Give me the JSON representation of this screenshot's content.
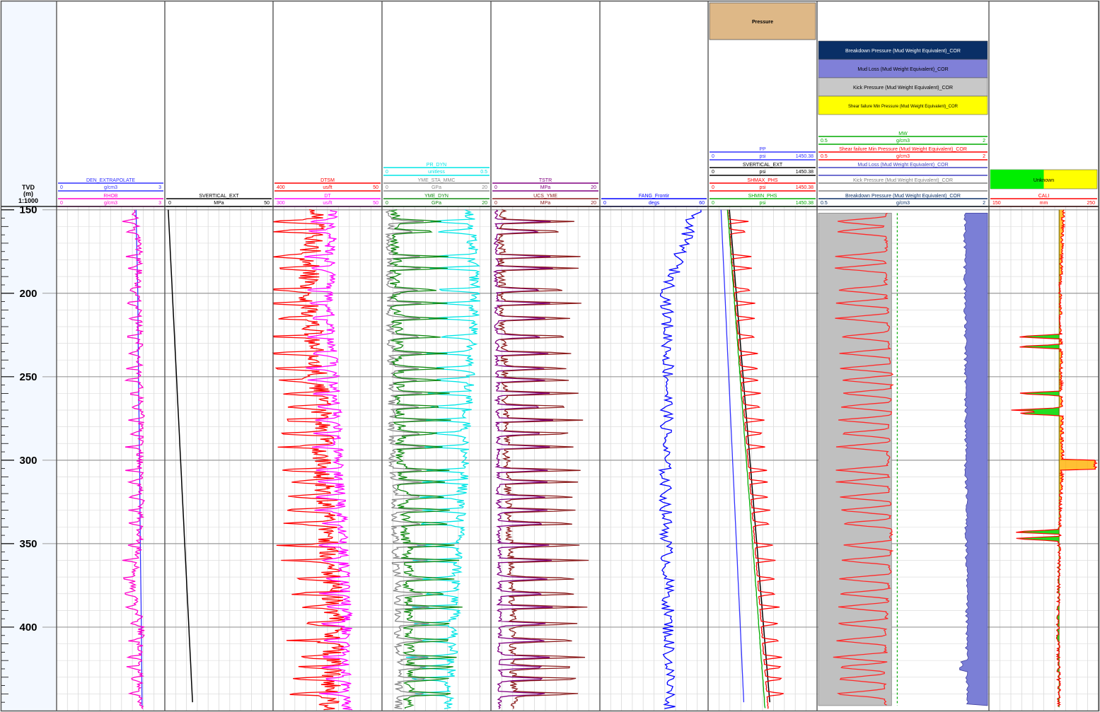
{
  "depth_track": {
    "header_line1": "TVD",
    "header_line2": "(m)",
    "header_line3": "1:1000",
    "ticks": [
      "150",
      "200",
      "250",
      "300",
      "350",
      "400"
    ]
  },
  "tracks": [
    {
      "curves": [
        {
          "name": "DEN_EXTRAPOLATE",
          "unit": "g/cm3",
          "min": "0",
          "max": "3",
          "color": "#3333ff"
        },
        {
          "name": "RHOB",
          "unit": "g/cm3",
          "min": "0",
          "max": "3",
          "color": "#ff00cc"
        }
      ]
    },
    {
      "curves": [
        {
          "name": "SVERTICAL_EXT",
          "unit": "MPa",
          "min": "0",
          "max": "50",
          "color": "#000000"
        }
      ]
    },
    {
      "curves": [
        {
          "name": "DTSM",
          "unit": "us/ft",
          "min": "400",
          "max": "50",
          "color": "#ff0000"
        },
        {
          "name": "DT",
          "unit": "us/ft",
          "min": "300",
          "max": "50",
          "color": "#ff00ff"
        }
      ]
    },
    {
      "curves": [
        {
          "name": "PR_DYN",
          "unit": "unitless",
          "min": "0",
          "max": "0.5",
          "color": "#00e5e5"
        },
        {
          "name": "YME_STA_MMC",
          "unit": "GPa",
          "min": "0",
          "max": "20",
          "color": "#888888"
        },
        {
          "name": "YME_DYN",
          "unit": "GPa",
          "min": "0",
          "max": "20",
          "color": "#118811"
        }
      ]
    },
    {
      "curves": [
        {
          "name": "TSTR",
          "unit": "MPa",
          "min": "0",
          "max": "20",
          "color": "#800080"
        },
        {
          "name": "UCS_YME",
          "unit": "MPa",
          "min": "0",
          "max": "20",
          "color": "#8b1a1a"
        }
      ]
    },
    {
      "curves": [
        {
          "name": "FANG_Frontir",
          "unit": "degs",
          "min": "0",
          "max": "60",
          "color": "#0000ff"
        }
      ]
    },
    {
      "top_label": "Pressure",
      "top_color": "#deb887",
      "curves": [
        {
          "name": "PP",
          "unit": "psi",
          "min": "0",
          "max": "1450.38",
          "color": "#3333ff"
        },
        {
          "name": "SVERTICAL_EXT",
          "unit": "psi",
          "min": "0",
          "max": "1450.38",
          "color": "#000000"
        },
        {
          "name": "SHMAX_PHS",
          "unit": "psi",
          "min": "0",
          "max": "1450.38",
          "color": "#ff0000"
        },
        {
          "name": "SHMIN_PHS",
          "unit": "psi",
          "min": "0",
          "max": "1450.38",
          "color": "#00aa00"
        }
      ]
    },
    {
      "legend": [
        {
          "label": "Breakdown Pressure (Mud Weight Equivalent)_COR",
          "color": "#0a2f66",
          "text_color": "#ffffff"
        },
        {
          "label": "Mud Loss (Mud Weight Equivalent)_COR",
          "color": "#8080d8",
          "text_color": "#000000"
        },
        {
          "label": "Kick Pressure (Mud Weight Equivalent)_COR",
          "color": "#c8c8c8",
          "text_color": "#000000"
        },
        {
          "label": "Shear failure Min Pressure (Mud Weight Equivalent)_COR",
          "color": "#ffff00",
          "text_color": "#000000"
        }
      ],
      "curves": [
        {
          "name": "MW",
          "unit": "g/cm3",
          "min": "0.5",
          "max": "2",
          "color": "#00aa00"
        },
        {
          "name": "Shear failure Min Pressure (Mud Weight Equivalent)_COR",
          "unit": "g/cm3",
          "min": "0.5",
          "max": "2",
          "color": "#ff0000"
        },
        {
          "name": "Mud Loss (Mud Weight Equivalent)_COR",
          "unit": "",
          "min": "",
          "max": "",
          "color": "#4040c0"
        },
        {
          "name": "Kick Pressure (Mud Weight Equivalent)_COR",
          "unit": "",
          "min": "",
          "max": "",
          "color": "#808080"
        },
        {
          "name": "Breakdown Pressure (Mud Weight Equivalent)_COR",
          "unit": "g/cm3",
          "min": "0.5",
          "max": "2",
          "color": "#0a2f66"
        }
      ]
    },
    {
      "legend": [
        {
          "label": "Unknown",
          "color": "#00ee00",
          "text_color": "#000000"
        }
      ],
      "curves": [
        {
          "name": "CALI",
          "unit": "mm",
          "min": "150",
          "max": "250",
          "color": "#ff0000"
        }
      ]
    }
  ],
  "chart_data": {
    "type": "line",
    "depth_range": [
      148,
      450
    ],
    "y_axis": "TVD (m)",
    "scale": "1:1000",
    "grid": true,
    "depth_ticks": [
      150,
      200,
      250,
      300,
      350,
      400
    ],
    "series": [
      {
        "name": "DEN_EXTRAPOLATE",
        "track": 1,
        "range": [
          0,
          3
        ],
        "x": [
          148,
          200,
          250,
          300,
          350,
          400,
          450
        ],
        "values": [
          2.2,
          2.25,
          2.27,
          2.3,
          2.32,
          2.35,
          2.37
        ]
      },
      {
        "name": "RHOB",
        "track": 1,
        "range": [
          0,
          3
        ],
        "x": [
          150,
          175,
          200,
          225,
          250,
          275,
          300,
          325,
          350,
          375,
          400,
          425,
          450
        ],
        "values": [
          2.15,
          2.3,
          2.25,
          2.3,
          2.3,
          2.35,
          2.3,
          2.35,
          2.3,
          2.1,
          2.35,
          2.3,
          2.35
        ]
      },
      {
        "name": "SVERTICAL_EXT",
        "track": 2,
        "range": [
          0,
          50
        ],
        "x": [
          148,
          450
        ],
        "values": [
          1.5,
          13.0
        ]
      },
      {
        "name": "DTSM",
        "track": 3,
        "range": [
          400,
          50
        ],
        "x": [
          150,
          175,
          200,
          225,
          250,
          275,
          300,
          325,
          350,
          375,
          400,
          425,
          450
        ],
        "values": [
          260,
          280,
          290,
          270,
          260,
          240,
          240,
          230,
          220,
          210,
          200,
          210,
          220
        ]
      },
      {
        "name": "DT",
        "track": 3,
        "range": [
          300,
          50
        ],
        "x": [
          150,
          175,
          200,
          225,
          250,
          275,
          300,
          325,
          350,
          375,
          400,
          425,
          450
        ],
        "values": [
          160,
          170,
          170,
          165,
          160,
          150,
          150,
          145,
          140,
          135,
          130,
          135,
          130
        ]
      },
      {
        "name": "PR_DYN",
        "track": 4,
        "range": [
          0,
          0.5
        ],
        "x": [
          150,
          200,
          250,
          300,
          350,
          400,
          450
        ],
        "values": [
          0.4,
          0.43,
          0.4,
          0.38,
          0.35,
          0.33,
          0.3
        ]
      },
      {
        "name": "YME_STA_MMC",
        "track": 4,
        "range": [
          0,
          20
        ],
        "x": [
          150,
          200,
          250,
          300,
          350,
          400,
          450
        ],
        "values": [
          1.5,
          1.5,
          1.8,
          2.0,
          2.5,
          3.0,
          3.0
        ]
      },
      {
        "name": "YME_DYN",
        "track": 4,
        "range": [
          0,
          20
        ],
        "x": [
          150,
          200,
          250,
          300,
          350,
          400,
          450
        ],
        "values": [
          2.5,
          2.5,
          3.0,
          3.5,
          4.5,
          5.0,
          5.0
        ]
      },
      {
        "name": "TSTR",
        "track": 5,
        "range": [
          0,
          20
        ],
        "x": [
          150,
          200,
          250,
          300,
          350,
          400,
          450
        ],
        "values": [
          1.0,
          1.0,
          1.2,
          1.3,
          1.5,
          1.6,
          1.7
        ]
      },
      {
        "name": "UCS_YME",
        "track": 5,
        "range": [
          0,
          20
        ],
        "x": [
          150,
          200,
          250,
          300,
          350,
          400,
          450
        ],
        "values": [
          2.0,
          2.0,
          2.5,
          2.8,
          3.5,
          4.0,
          4.2
        ]
      },
      {
        "name": "FANG_Frontir",
        "track": 6,
        "range": [
          0,
          60
        ],
        "x": [
          150,
          200,
          250,
          300,
          350,
          400,
          450
        ],
        "values": [
          53,
          37,
          38,
          36,
          37,
          38,
          39
        ]
      },
      {
        "name": "PP",
        "track": 7,
        "range": [
          0,
          1450.38
        ],
        "x": [
          148,
          450
        ],
        "values": [
          170,
          480
        ]
      },
      {
        "name": "SVERTICAL_EXT",
        "track": 7,
        "range": [
          0,
          1450.38
        ],
        "x": [
          148,
          450
        ],
        "values": [
          280,
          830
        ]
      },
      {
        "name": "SHMAX_PHS",
        "track": 7,
        "range": [
          0,
          1450.38
        ],
        "x": [
          148,
          450
        ],
        "values": [
          260,
          800
        ]
      },
      {
        "name": "SHMIN_PHS",
        "track": 7,
        "range": [
          0,
          1450.38
        ],
        "x": [
          148,
          450
        ],
        "values": [
          255,
          760
        ]
      },
      {
        "name": "MW",
        "track": 8,
        "range": [
          0.5,
          2
        ],
        "x": [
          148,
          450
        ],
        "values": [
          1.2,
          1.2
        ]
      },
      {
        "name": "Kick Pressure (Mud Weight Equivalent)_COR",
        "track": 8,
        "range": [
          0.5,
          2
        ],
        "x": [
          148,
          450
        ],
        "values": [
          1.15,
          1.15
        ]
      },
      {
        "name": "Shear failure Min Pressure (Mud Weight Equivalent)_COR",
        "track": 8,
        "range": [
          0.5,
          2
        ],
        "x": [
          150,
          200,
          250,
          300,
          350,
          400,
          450
        ],
        "values": [
          1.1,
          1.1,
          1.15,
          1.12,
          1.15,
          1.1,
          1.1
        ]
      },
      {
        "name": "Mud Loss (Mud Weight Equivalent)_COR",
        "track": 8,
        "range": [
          0.5,
          2
        ],
        "x": [
          148,
          450
        ],
        "values": [
          1.79,
          1.81
        ]
      },
      {
        "name": "CALI",
        "track": 9,
        "range": [
          150,
          250
        ],
        "x": [
          150,
          200,
          250,
          300,
          350,
          400,
          450
        ],
        "values": [
          218,
          215,
          216,
          217,
          214,
          213,
          214
        ]
      }
    ]
  }
}
